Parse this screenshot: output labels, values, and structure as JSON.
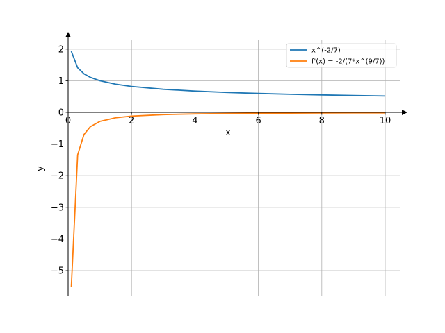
{
  "chart_data": {
    "type": "line",
    "xlabel": "x",
    "ylabel": "y",
    "xlim": [
      0,
      10.5
    ],
    "ylim": [
      -5.8,
      2.5
    ],
    "xticks": [
      0,
      2,
      4,
      6,
      8,
      10
    ],
    "yticks": [
      -5,
      -4,
      -3,
      -2,
      -1,
      0,
      1,
      2
    ],
    "xtick_labels": [
      "0",
      "2",
      "4",
      "6",
      "8",
      "10"
    ],
    "ytick_labels": [
      "−5",
      "−4",
      "−3",
      "−2",
      "−1",
      "0",
      "1",
      "2"
    ],
    "grid": true,
    "legend_position": "top-right",
    "series": [
      {
        "name": "x^(-2/7)",
        "color": "#1f77b4",
        "x": [
          0.1,
          0.3,
          0.5,
          0.7,
          1.0,
          1.5,
          2.0,
          3.0,
          4.0,
          5.0,
          6.0,
          7.0,
          8.0,
          9.0,
          10.0
        ],
        "y": [
          1.931,
          1.411,
          1.219,
          1.107,
          1.0,
          0.89,
          0.82,
          0.731,
          0.673,
          0.631,
          0.599,
          0.573,
          0.552,
          0.534,
          0.518
        ]
      },
      {
        "name": "f'(x) = -2/(7*x^(9/7))",
        "color": "#ff7f0e",
        "x": [
          0.1,
          0.3,
          0.5,
          0.7,
          1.0,
          1.5,
          2.0,
          3.0,
          4.0,
          5.0,
          6.0,
          7.0,
          8.0,
          9.0,
          10.0
        ],
        "y": [
          -5.517,
          -1.344,
          -0.697,
          -0.452,
          -0.286,
          -0.17,
          -0.117,
          -0.07,
          -0.048,
          -0.036,
          -0.029,
          -0.023,
          -0.02,
          -0.017,
          -0.015
        ]
      }
    ]
  }
}
